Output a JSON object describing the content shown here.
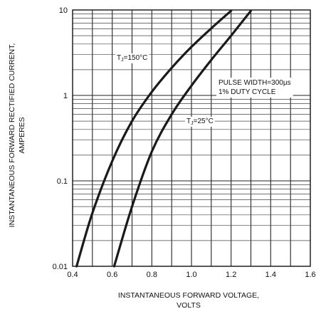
{
  "chart_data": {
    "type": "line",
    "title": "",
    "xlabel": [
      "INSTANTANEOUS FORWARD VOLTAGE,",
      "VOLTS"
    ],
    "ylabel": [
      "INSTANTANEOUS FORWARD RECTIFIED CURRENT,",
      "AMPERES"
    ],
    "xlim": [
      0.4,
      1.6
    ],
    "ylim": [
      0.01,
      10
    ],
    "yscale": "log",
    "grid": true,
    "x_ticks": [
      "0.4",
      "0.6",
      "0.8",
      "1.0",
      "1.2",
      "1.4",
      "1.6"
    ],
    "y_ticks": [
      "0.01",
      "0.1",
      "1",
      "10"
    ],
    "series": [
      {
        "name": "TJ=150°C",
        "label_main": "T",
        "label_sub": "J",
        "label_rest": "=150°C",
        "x": [
          0.42,
          0.5,
          0.6,
          0.7,
          0.8,
          0.9,
          1.0,
          1.1,
          1.2
        ],
        "y": [
          0.01,
          0.042,
          0.17,
          0.5,
          1.1,
          2.1,
          3.7,
          6.1,
          9.8
        ]
      },
      {
        "name": "TJ=25°C",
        "label_main": "T",
        "label_sub": "J",
        "label_rest": "=25°C",
        "x": [
          0.61,
          0.7,
          0.8,
          0.9,
          1.0,
          1.1,
          1.2,
          1.3
        ],
        "y": [
          0.01,
          0.05,
          0.22,
          0.6,
          1.3,
          2.6,
          5.0,
          9.8
        ]
      }
    ],
    "annotations": [
      "PULSE WIDTH=300µs",
      "1% DUTY CYCLE"
    ]
  }
}
